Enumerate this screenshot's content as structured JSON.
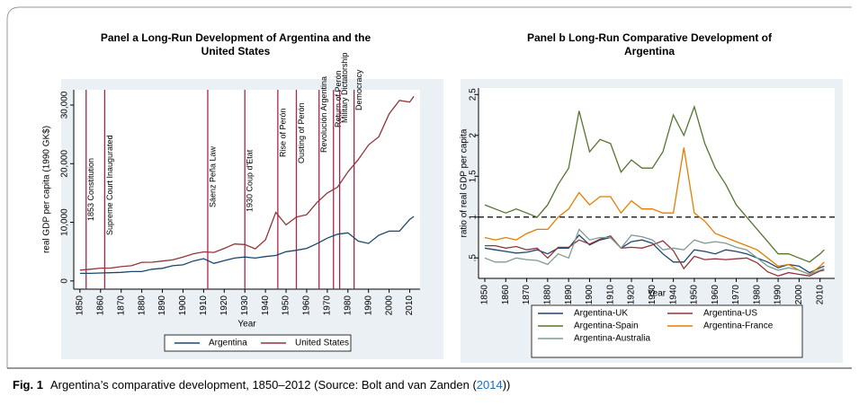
{
  "chart_data": [
    {
      "type": "line",
      "title": [
        "Panel a  Long-Run Development of Argentina and the",
        "United States"
      ],
      "xlabel": "Year",
      "ylabel": "real GDP per capita (1990 GK$)",
      "x": [
        1850,
        1855,
        1860,
        1865,
        1870,
        1875,
        1880,
        1885,
        1890,
        1895,
        1900,
        1905,
        1910,
        1915,
        1920,
        1925,
        1930,
        1935,
        1940,
        1945,
        1950,
        1955,
        1960,
        1965,
        1970,
        1975,
        1980,
        1985,
        1990,
        1995,
        2000,
        2005,
        2010,
        2012
      ],
      "series": [
        {
          "name": "Argentina",
          "color": "#1a476f",
          "values": [
            1300,
            1300,
            1350,
            1400,
            1470,
            1600,
            1600,
            2000,
            2150,
            2600,
            2750,
            3400,
            3800,
            3000,
            3470,
            3900,
            4080,
            3900,
            4160,
            4350,
            4990,
            5230,
            5560,
            6370,
            7300,
            7970,
            8200,
            6800,
            6400,
            7800,
            8500,
            8500,
            10500,
            11000
          ]
        },
        {
          "name": "United States",
          "color": "#90353b",
          "values": [
            1850,
            2000,
            2180,
            2200,
            2450,
            2600,
            3180,
            3200,
            3390,
            3600,
            4090,
            4640,
            4960,
            4860,
            5550,
            6300,
            6210,
            5470,
            7010,
            11700,
            9560,
            10900,
            11300,
            13400,
            15000,
            16000,
            18600,
            20700,
            23200,
            24600,
            28500,
            30800,
            30500,
            31500
          ]
        }
      ],
      "xlim": [
        1847,
        2015
      ],
      "ylim": [
        -1400,
        32600
      ],
      "xticks": [
        1850,
        1860,
        1870,
        1880,
        1890,
        1900,
        1910,
        1920,
        1930,
        1940,
        1950,
        1960,
        1970,
        1980,
        1990,
        2000,
        2010
      ],
      "yticks": [
        0,
        {
          "value": 10000,
          "label": "10,000"
        },
        {
          "value": 20000,
          "label": "20,000"
        },
        {
          "value": 30000,
          "label": "30,000"
        }
      ],
      "annotations": [
        {
          "x": 1853,
          "text": "1853 Constitution"
        },
        {
          "x": 1862,
          "text": "Supreme Court Inaugurated"
        },
        {
          "x": 1912,
          "text": "Sáenz Peña Law"
        },
        {
          "x": 1930,
          "text": "1930 Coup d'Etat"
        },
        {
          "x": 1946,
          "text": "Rise of Perón"
        },
        {
          "x": 1955,
          "text": "Ousting of Perón"
        },
        {
          "x": 1966,
          "text": "Revolución Argentina"
        },
        {
          "x": 1973,
          "text": "Return of Perón"
        },
        {
          "x": 1976,
          "text": "Military Dictatorship"
        },
        {
          "x": 1983,
          "text": "Democracy"
        }
      ],
      "annotation_color": "#a8264a",
      "legend": "bottom"
    },
    {
      "type": "line",
      "title": [
        "Panel b  Long-Run Comparative Development of",
        "Argentina"
      ],
      "xlabel": "Year",
      "ylabel": "ratio of real GDP per capita",
      "x": [
        1850,
        1855,
        1860,
        1865,
        1870,
        1875,
        1880,
        1885,
        1890,
        1895,
        1900,
        1905,
        1910,
        1915,
        1920,
        1925,
        1930,
        1935,
        1940,
        1945,
        1950,
        1955,
        1960,
        1965,
        1970,
        1975,
        1980,
        1985,
        1990,
        1995,
        2000,
        2005,
        2010,
        2012
      ],
      "series": [
        {
          "name": "Argentina-UK",
          "color": "#1a476f",
          "values": [
            0.62,
            0.6,
            0.58,
            0.56,
            0.57,
            0.6,
            0.55,
            0.62,
            0.62,
            0.78,
            0.66,
            0.72,
            0.75,
            0.62,
            0.7,
            0.72,
            0.68,
            0.55,
            0.45,
            0.45,
            0.6,
            0.58,
            0.55,
            0.6,
            0.58,
            0.55,
            0.5,
            0.45,
            0.38,
            0.42,
            0.4,
            0.32,
            0.38,
            0.4
          ]
        },
        {
          "name": "Argentina-US",
          "color": "#90353b",
          "values": [
            0.65,
            0.65,
            0.62,
            0.64,
            0.6,
            0.62,
            0.5,
            0.63,
            0.63,
            0.72,
            0.67,
            0.73,
            0.77,
            0.62,
            0.63,
            0.62,
            0.66,
            0.71,
            0.59,
            0.37,
            0.52,
            0.48,
            0.49,
            0.48,
            0.49,
            0.5,
            0.44,
            0.33,
            0.28,
            0.32,
            0.3,
            0.28,
            0.34,
            0.35
          ]
        },
        {
          "name": "Argentina-Spain",
          "color": "#55752f",
          "values": [
            1.15,
            1.1,
            1.05,
            1.1,
            1.05,
            1.0,
            1.15,
            1.4,
            1.6,
            2.3,
            1.8,
            1.95,
            1.9,
            1.55,
            1.7,
            1.6,
            1.6,
            1.8,
            2.25,
            2.0,
            2.35,
            1.9,
            1.6,
            1.4,
            1.15,
            1.0,
            0.85,
            0.7,
            0.55,
            0.55,
            0.5,
            0.45,
            0.55,
            0.6
          ]
        },
        {
          "name": "Argentina-France",
          "color": "#e37e00",
          "values": [
            0.75,
            0.72,
            0.75,
            0.72,
            0.8,
            0.85,
            0.85,
            1.0,
            1.1,
            1.3,
            1.15,
            1.25,
            1.25,
            1.05,
            1.2,
            1.1,
            1.1,
            1.05,
            1.05,
            1.85,
            1.05,
            0.95,
            0.8,
            0.75,
            0.7,
            0.65,
            0.6,
            0.5,
            0.4,
            0.42,
            0.35,
            0.3,
            0.4,
            0.45
          ]
        },
        {
          "name": "Argentina-Australia",
          "color": "#7f9a92",
          "values": [
            0.5,
            0.45,
            0.45,
            0.5,
            0.48,
            0.47,
            0.42,
            0.55,
            0.5,
            0.85,
            0.72,
            0.75,
            0.75,
            0.62,
            0.78,
            0.76,
            0.72,
            0.6,
            0.62,
            0.6,
            0.72,
            0.68,
            0.7,
            0.68,
            0.63,
            0.6,
            0.5,
            0.4,
            0.35,
            0.38,
            0.35,
            0.3,
            0.35,
            0.37
          ]
        }
      ],
      "xlim": [
        1847,
        2017
      ],
      "ylim": [
        0.25,
        2.58
      ],
      "xticks": [
        1850,
        1860,
        1870,
        1880,
        1890,
        1900,
        1910,
        1920,
        1930,
        1940,
        1950,
        1960,
        1970,
        1980,
        1990,
        2000,
        2010
      ],
      "yticks": [
        {
          "value": 0.5,
          "label": ".5"
        },
        1,
        1.5,
        2,
        2.5
      ],
      "refline": 1,
      "legend": "bottom"
    }
  ],
  "caption": {
    "label": "Fig. 1",
    "text": "Argentina’s comparative development, 1850–2012 (Source: Bolt and van Zanden (",
    "cite": "2014",
    "end": "))"
  }
}
